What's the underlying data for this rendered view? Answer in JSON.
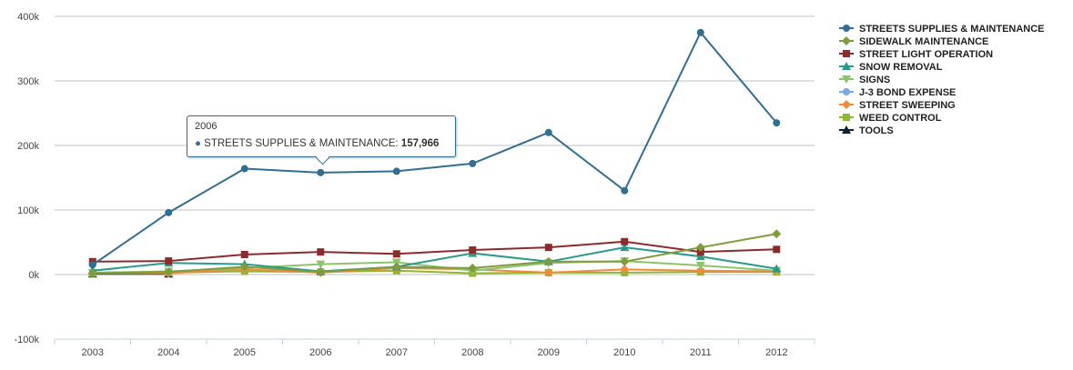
{
  "chart_data": {
    "type": "line",
    "categories": [
      "2003",
      "2004",
      "2005",
      "2006",
      "2007",
      "2008",
      "2009",
      "2010",
      "2011",
      "2012"
    ],
    "ylim": [
      -100000,
      400000
    ],
    "yticks": [
      -100000,
      0,
      100000,
      200000,
      300000,
      400000
    ],
    "ytick_labels": [
      "-100k",
      "0k",
      "100k",
      "200k",
      "300k",
      "400k"
    ],
    "grid": true,
    "legend_position": "right",
    "series": [
      {
        "name": "STREETS SUPPLIES & MAINTENANCE",
        "color": "#336e91",
        "marker": "circle",
        "values": [
          15000,
          96000,
          164000,
          157966,
          160000,
          172000,
          220000,
          130000,
          375000,
          235000
        ]
      },
      {
        "name": "SIDEWALK MAINTENANCE",
        "color": "#7f9c3c",
        "marker": "diamond",
        "values": [
          2000,
          4000,
          12000,
          4000,
          12000,
          10000,
          20000,
          20000,
          42000,
          63000
        ]
      },
      {
        "name": "STREET LIGHT OPERATION",
        "color": "#8b2b2b",
        "marker": "square",
        "values": [
          20000,
          21000,
          31000,
          35000,
          32000,
          38000,
          42000,
          51000,
          35000,
          39000
        ]
      },
      {
        "name": "SNOW REMOVAL",
        "color": "#2a9a8c",
        "marker": "triangle",
        "values": [
          6000,
          18000,
          16000,
          5000,
          12000,
          33000,
          20000,
          42000,
          28000,
          9000
        ]
      },
      {
        "name": "SIGNS",
        "color": "#8cc46a",
        "marker": "triangle-down",
        "values": [
          3000,
          5000,
          10000,
          16000,
          19000,
          6000,
          18000,
          21000,
          14000,
          6000
        ]
      },
      {
        "name": "J-3 BOND EXPENSE",
        "color": "#7aa8e0",
        "marker": "circle",
        "values": [
          null,
          null,
          null,
          null,
          null,
          null,
          null,
          null,
          null,
          null
        ]
      },
      {
        "name": "STREET SWEEPING",
        "color": "#f08a3c",
        "marker": "diamond",
        "values": [
          2000,
          2000,
          8000,
          3000,
          10000,
          8000,
          3000,
          8000,
          6000,
          5000
        ]
      },
      {
        "name": "WEED CONTROL",
        "color": "#8db831",
        "marker": "square",
        "values": [
          2000,
          3000,
          5000,
          4000,
          6000,
          2000,
          3000,
          3000,
          4000,
          4000
        ]
      },
      {
        "name": "TOOLS",
        "color": "#0f1f2f",
        "marker": "triangle",
        "values": [
          1000,
          1000,
          null,
          null,
          null,
          null,
          null,
          null,
          null,
          null
        ]
      }
    ]
  },
  "tooltip": {
    "x_label": "2006",
    "series_name": "STREETS SUPPLIES & MAINTENANCE:",
    "value": "157,966"
  }
}
